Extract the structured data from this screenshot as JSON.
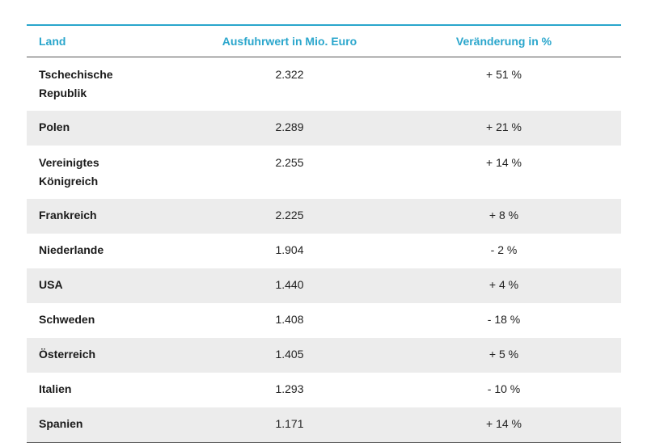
{
  "table": {
    "headers": {
      "land": "Land",
      "value": "Ausfuhrwert in Mio. Euro",
      "change": "Veränderung in %"
    },
    "rows": [
      {
        "land": "Tschechische\nRepublik",
        "value": "2.322",
        "change": "+ 51 %"
      },
      {
        "land": "Polen",
        "value": "2.289",
        "change": "+ 21 %"
      },
      {
        "land": "Vereinigtes\nKönigreich",
        "value": "2.255",
        "change": "+ 14 %"
      },
      {
        "land": "Frankreich",
        "value": "2.225",
        "change": "+ 8 %"
      },
      {
        "land": "Niederlande",
        "value": "1.904",
        "change": "- 2 %"
      },
      {
        "land": "USA",
        "value": "1.440",
        "change": "+ 4 %"
      },
      {
        "land": "Schweden",
        "value": "1.408",
        "change": "- 18 %"
      },
      {
        "land": "Österreich",
        "value": "1.405",
        "change": "+ 5 %"
      },
      {
        "land": "Italien",
        "value": "1.293",
        "change": "- 10 %"
      },
      {
        "land": "Spanien",
        "value": "1.171",
        "change": "+ 14 %"
      }
    ],
    "colors": {
      "accent": "#2aa6cc",
      "stripe": "#ececec"
    }
  }
}
